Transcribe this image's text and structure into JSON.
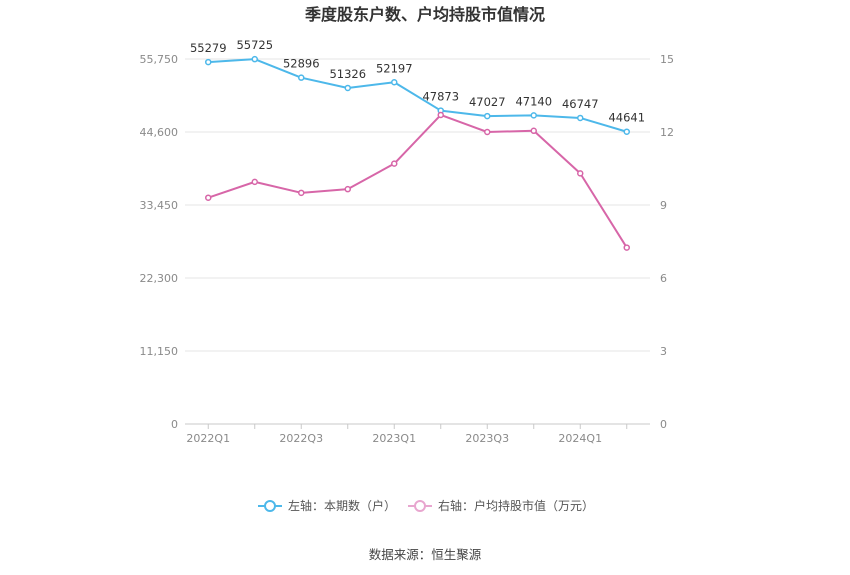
{
  "chart_data": {
    "type": "line",
    "title": "季度股东户数、户均持股市值情况",
    "categories": [
      "2022Q1",
      "2022Q2",
      "2022Q3",
      "2022Q4",
      "2023Q1",
      "2023Q2",
      "2023Q3",
      "2023Q4",
      "2024Q1",
      "2024Q2"
    ],
    "x_tick_labels": [
      "2022Q1",
      "",
      "2022Q3",
      "",
      "2023Q1",
      "",
      "2023Q3",
      "",
      "2024Q1",
      ""
    ],
    "series": [
      {
        "name": "左轴：本期数（户）",
        "axis": "left",
        "color": "#4db8ea",
        "values": [
          55279,
          55725,
          52896,
          51326,
          52197,
          47873,
          47027,
          47140,
          46747,
          44641
        ],
        "labels": [
          "55279",
          "55725",
          "52896",
          "51326",
          "52197",
          "47873",
          "47027",
          "47140",
          "46747",
          "44641"
        ]
      },
      {
        "name": "右轴：户均持股市值（万元）",
        "axis": "right",
        "color": "#d766a8",
        "values": [
          9.3,
          9.95,
          9.5,
          9.65,
          10.7,
          12.7,
          12.0,
          12.05,
          10.3,
          7.25
        ]
      }
    ],
    "y_left": {
      "ticks": [
        "0",
        "11,150",
        "22,300",
        "33,450",
        "44,600",
        "55,750"
      ],
      "ylim": [
        0,
        55750
      ]
    },
    "y_right": {
      "ticks": [
        "0",
        "3",
        "6",
        "9",
        "12",
        "15"
      ],
      "ylim": [
        0,
        15
      ]
    },
    "grid": true,
    "legend": "bottom-center",
    "source": "数据来源：恒生聚源"
  }
}
